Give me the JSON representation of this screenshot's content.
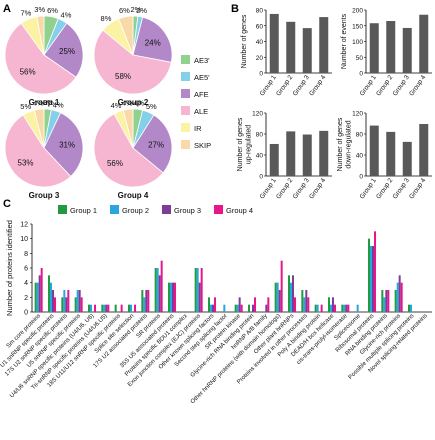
{
  "panels": {
    "a": "A",
    "b": "B",
    "c": "C"
  },
  "colors": {
    "AE3": "#8fd18d",
    "AE5": "#84cfe9",
    "AFE": "#b388c9",
    "ALE": "#f6b6d2",
    "IR": "#fbf3a3",
    "SKIP": "#fad9a8",
    "g1": "#1f9a3f",
    "g2": "#29a6dd",
    "g3": "#7b3d98",
    "g4": "#e8158b",
    "bar": "#595959"
  },
  "chart_data": [
    {
      "type": "pie",
      "panel": "A",
      "title": "Group 1",
      "labels": [
        "AE3'",
        "AE5'",
        "AFE",
        "ALE",
        "IR",
        "SKIP"
      ],
      "values": [
        6,
        4,
        25,
        56,
        7,
        3
      ],
      "value_labels": [
        "6%",
        "4%",
        "25%",
        "56%",
        "7%",
        "3%"
      ],
      "legend": [
        "AE3'",
        "AE5'",
        "AFE",
        "ALE",
        "IR",
        "SKIP"
      ]
    },
    {
      "type": "pie",
      "panel": "A",
      "title": "Group 2",
      "labels": [
        "AE3'",
        "AE5'",
        "AFE",
        "ALE",
        "IR",
        "SKIP"
      ],
      "values": [
        2,
        2,
        24,
        58,
        8,
        6
      ],
      "value_labels": [
        "2%",
        "2%",
        "24%",
        "58%",
        "8%",
        "6%"
      ]
    },
    {
      "type": "pie",
      "panel": "A",
      "title": "Group 3",
      "labels": [
        "AE3'",
        "AE5'",
        "AFE",
        "ALE",
        "IR",
        "SKIP"
      ],
      "values": [
        3,
        4,
        31,
        53,
        5,
        4
      ],
      "value_labels": [
        "3%",
        "4%",
        "31%",
        "53%",
        "5%",
        "4%"
      ]
    },
    {
      "type": "pie",
      "panel": "A",
      "title": "Group 4",
      "labels": [
        "AE3'",
        "AE5'",
        "AFE",
        "ALE",
        "IR",
        "SKIP"
      ],
      "values": [
        4,
        5,
        27,
        56,
        4,
        4
      ],
      "value_labels": [
        "4%",
        "5%",
        "27%",
        "56%",
        "4%",
        "4%"
      ]
    },
    {
      "type": "bar",
      "panel": "B",
      "ylabel": "Number of genes",
      "categories": [
        "Group 1",
        "Group 2",
        "Group 3",
        "Group 4"
      ],
      "values": [
        75,
        65,
        57,
        71
      ],
      "ylim": [
        0,
        80
      ],
      "yticks": [
        0,
        20,
        40,
        60,
        80
      ]
    },
    {
      "type": "bar",
      "panel": "B",
      "ylabel": "Number of events",
      "categories": [
        "Group 1",
        "Group 2",
        "Group 3",
        "Group 4"
      ],
      "values": [
        158,
        165,
        143,
        185
      ],
      "ylim": [
        0,
        200
      ],
      "yticks": [
        0,
        50,
        100,
        150,
        200
      ]
    },
    {
      "type": "bar",
      "panel": "B",
      "ylabel": "Number of genes up-regulated",
      "categories": [
        "Group 1",
        "Group 2",
        "Group 3",
        "Group 4"
      ],
      "values": [
        61,
        85,
        79,
        86
      ],
      "ylim": [
        0,
        120
      ],
      "yticks": [
        0,
        40,
        80,
        120
      ]
    },
    {
      "type": "bar",
      "panel": "B",
      "ylabel": "Number of genes down-regulated",
      "categories": [
        "Group 1",
        "Group 2",
        "Group 3",
        "Group 4"
      ],
      "values": [
        96,
        84,
        65,
        99
      ],
      "ylim": [
        0,
        120
      ],
      "yticks": [
        0,
        40,
        80,
        120
      ]
    },
    {
      "type": "bar",
      "panel": "C",
      "ylabel": "Number of proteins identified",
      "ylim": [
        0,
        12
      ],
      "yticks": [
        0,
        2,
        4,
        6,
        8,
        10,
        12
      ],
      "legend_position": "top",
      "categories": [
        "Sm core proteins",
        "U1 snRNP specific proteins",
        "17S U2 snRNP specific proteins",
        "U5 snRNP specific proteins",
        "U4/U6 snRNP specific proteins (U4/U6, U6)",
        "Tri-snRNP specific proteins (U4/U6.U5)",
        "18S U11/U12 snRNP specific proteins",
        "Splice site selection",
        "17S U2 associated proteins",
        "SR proteins",
        "35S U5 associated proteins",
        "Proteins specific BDU1 complex",
        "Exon junction complex (EJC) proteins",
        "Other known splicing factors",
        "Second step splicing factor",
        "SR protein kinase",
        "Glycine-rich RNA binding protein",
        "hnRNP A/B family",
        "Other hnRNP proteins (with domain homologs)",
        "Other plant hnRNPs",
        "Proteins involved in other processes",
        "Poly A binding protein",
        "DEAD/H box helicase",
        "cis-trans-prolyl-isomerase",
        "Spliceosome",
        "Ribosomal proteins",
        "RNA binding proteins",
        "Glycine-rich proteins",
        "Possible multiple splicing proteins",
        "Novel splicing-related proteins"
      ],
      "series": [
        {
          "name": "Group 1",
          "values": [
            4,
            5,
            2,
            2,
            1,
            1,
            1,
            1,
            3,
            6,
            4,
            0,
            6,
            2,
            0,
            1,
            1,
            0,
            4,
            5,
            3,
            1,
            2,
            1,
            0,
            10,
            3,
            3,
            1,
            0
          ]
        },
        {
          "name": "Group 2",
          "values": [
            4,
            4,
            3,
            3,
            1,
            1,
            0,
            1,
            2,
            6,
            4,
            0,
            6,
            1,
            1,
            1,
            0,
            0,
            4,
            4,
            2,
            1,
            1,
            1,
            1,
            9,
            2,
            4,
            1,
            0
          ]
        },
        {
          "name": "Group 3",
          "values": [
            5,
            3,
            2,
            3,
            0,
            1,
            0,
            0,
            3,
            5,
            4,
            0,
            4,
            1,
            0,
            2,
            1,
            1,
            3,
            5,
            3,
            0,
            2,
            1,
            0,
            9,
            3,
            5,
            0,
            0
          ]
        },
        {
          "name": "Group 4",
          "values": [
            6,
            2,
            3,
            2,
            1,
            1,
            1,
            1,
            3,
            7,
            4,
            0,
            6,
            2,
            0,
            1,
            2,
            2,
            7,
            2,
            2,
            1,
            1,
            1,
            0,
            11,
            3,
            4,
            0,
            0
          ]
        }
      ]
    }
  ]
}
